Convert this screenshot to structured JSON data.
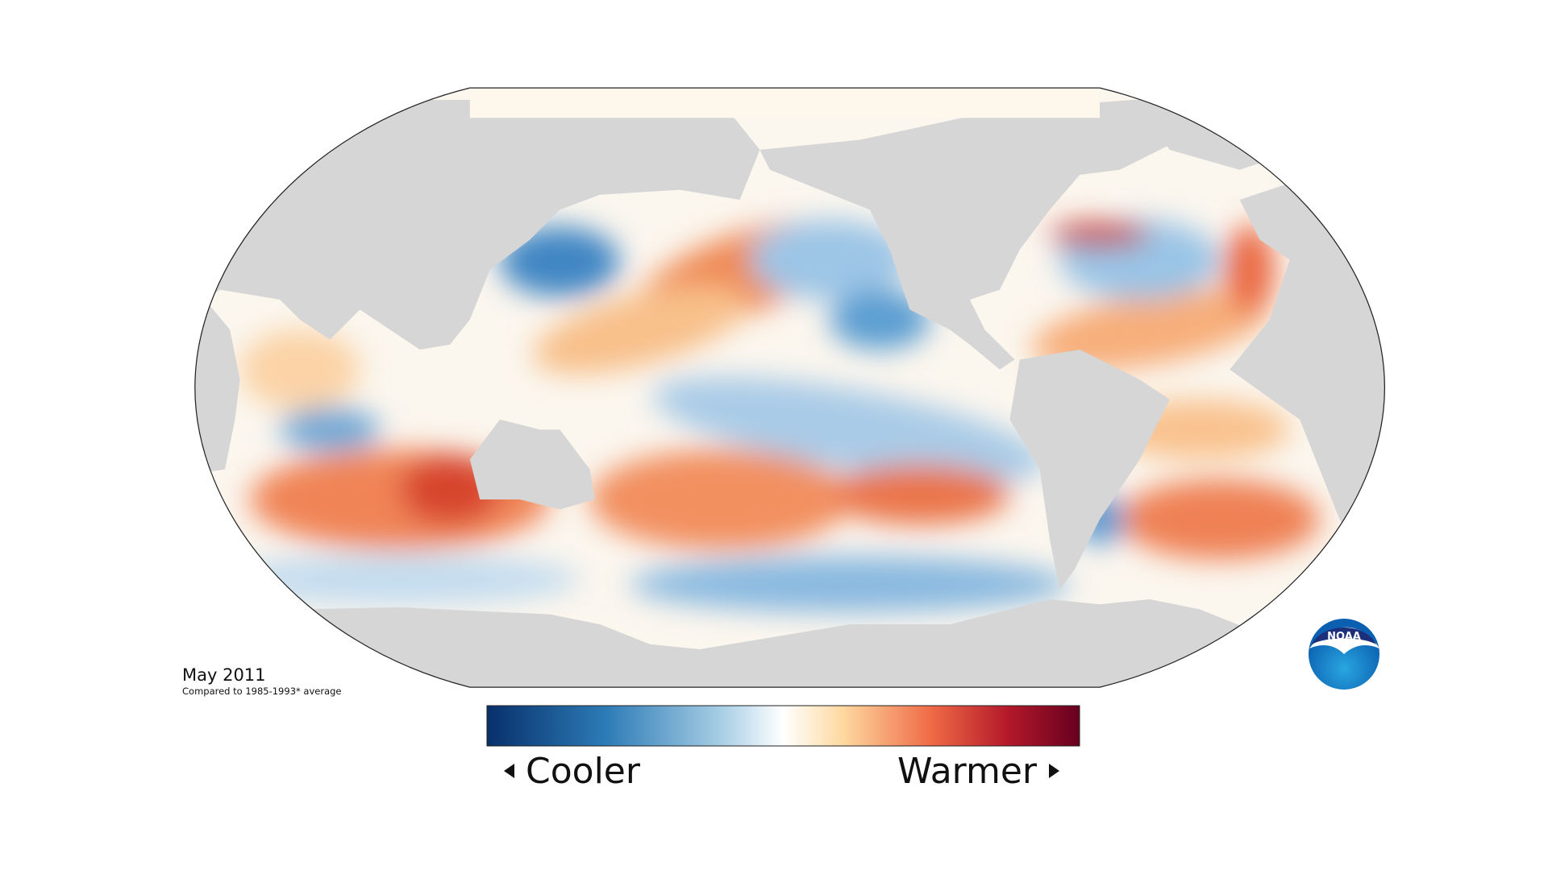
{
  "title": "May 2011",
  "subtitle": "Compared to 1985-1993* average",
  "legend": {
    "low": "Cooler",
    "high": "Warmer"
  },
  "logo": "NOAA"
}
